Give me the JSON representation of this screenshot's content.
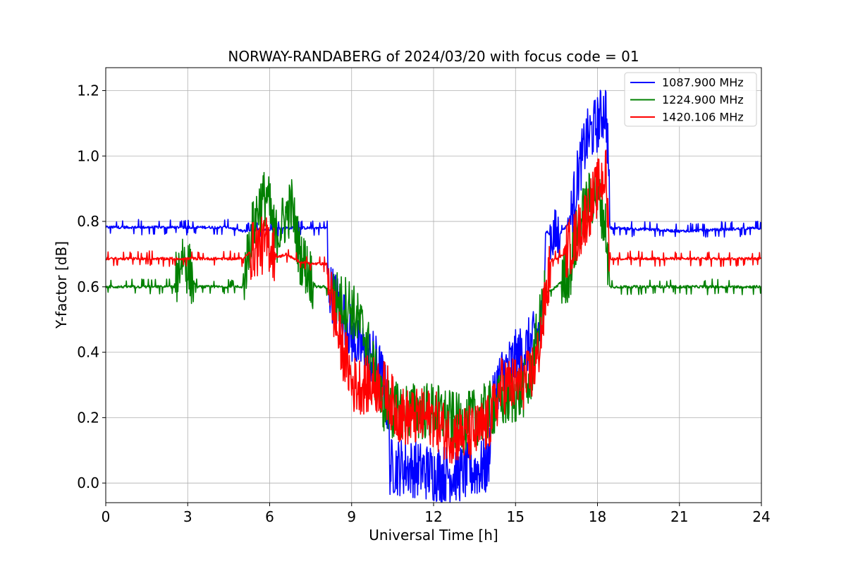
{
  "chart_data": {
    "type": "line",
    "title": "NORWAY-RANDABERG of 2024/03/20 with focus code = 01",
    "xlabel": "Universal Time [h]",
    "ylabel": "Y-factor [dB]",
    "xlim": [
      0,
      24
    ],
    "ylim": [
      -0.06,
      1.27
    ],
    "xticks": [
      0,
      3,
      6,
      9,
      12,
      15,
      18,
      21,
      24
    ],
    "yticks": [
      0.0,
      0.2,
      0.4,
      0.6,
      0.8,
      1.0,
      1.2
    ],
    "xtick_labels": [
      "0",
      "3",
      "6",
      "9",
      "12",
      "15",
      "18",
      "21",
      "24"
    ],
    "ytick_labels": [
      "0.0",
      "0.2",
      "0.4",
      "0.6",
      "0.8",
      "1.0",
      "1.2"
    ],
    "grid": true,
    "legend_position": "top-right",
    "series": [
      {
        "name": "1087.900 MHz",
        "color": "#0000ff",
        "baseline": 0.782,
        "dip": 0.77,
        "x": [
          0.0,
          4.5,
          5.0,
          6.5,
          7.0,
          8.1,
          8.15,
          8.5,
          8.8,
          9.0,
          9.2,
          9.5,
          9.8,
          10.0,
          10.2,
          10.35,
          10.4,
          11.0,
          12.0,
          13.0,
          13.5,
          14.0,
          14.1,
          14.3,
          14.5,
          15.0,
          15.3,
          15.5,
          15.8,
          16.0,
          16.1,
          16.5,
          17.0,
          17.3,
          17.6,
          18.0,
          18.3,
          18.4,
          18.45,
          20.0,
          21.0,
          24.0
        ],
        "y": [
          0.782,
          0.782,
          0.77,
          0.78,
          0.78,
          0.78,
          0.6,
          0.55,
          0.5,
          0.45,
          0.42,
          0.4,
          0.38,
          0.35,
          0.3,
          0.2,
          0.05,
          0.05,
          0.03,
          0.03,
          0.04,
          0.05,
          0.2,
          0.3,
          0.33,
          0.38,
          0.4,
          0.42,
          0.45,
          0.5,
          0.77,
          0.75,
          0.8,
          0.95,
          1.05,
          1.1,
          1.15,
          1.0,
          0.78,
          0.775,
          0.77,
          0.78
        ]
      },
      {
        "name": "1224.900 MHz",
        "color": "#008000",
        "baseline": 0.598,
        "x": [
          0.0,
          2.5,
          2.8,
          3.3,
          5.0,
          5.3,
          5.6,
          5.9,
          6.2,
          6.5,
          6.8,
          7.1,
          7.4,
          7.7,
          8.0,
          8.3,
          8.6,
          8.9,
          9.2,
          9.5,
          9.8,
          10.1,
          10.4,
          10.5,
          11.0,
          12.0,
          13.0,
          14.0,
          14.5,
          15.0,
          15.5,
          15.8,
          16.1,
          16.5,
          17.0,
          17.3,
          17.6,
          18.0,
          18.3,
          18.45,
          20.0,
          22.0,
          24.0
        ],
        "y": [
          0.6,
          0.6,
          0.7,
          0.6,
          0.6,
          0.75,
          0.85,
          0.88,
          0.75,
          0.8,
          0.85,
          0.7,
          0.65,
          0.6,
          0.6,
          0.58,
          0.55,
          0.55,
          0.5,
          0.45,
          0.35,
          0.25,
          0.23,
          0.22,
          0.22,
          0.22,
          0.18,
          0.22,
          0.25,
          0.27,
          0.3,
          0.45,
          0.58,
          0.6,
          0.65,
          0.78,
          0.85,
          0.9,
          0.78,
          0.6,
          0.6,
          0.6,
          0.6
        ]
      },
      {
        "name": "1420.106 MHz",
        "color": "#ff0000",
        "baseline": 0.686,
        "x": [
          0.0,
          5.0,
          5.5,
          6.0,
          6.3,
          6.6,
          7.0,
          7.5,
          8.1,
          8.3,
          8.5,
          8.7,
          8.9,
          9.0,
          9.5,
          10.0,
          10.3,
          10.6,
          11.0,
          11.5,
          12.0,
          12.5,
          13.0,
          13.5,
          14.0,
          14.2,
          14.5,
          15.0,
          15.5,
          15.8,
          16.0,
          16.3,
          16.8,
          17.2,
          17.6,
          18.0,
          18.3,
          18.45,
          20.0,
          22.0,
          24.0
        ],
        "y": [
          0.686,
          0.686,
          0.72,
          0.73,
          0.69,
          0.7,
          0.68,
          0.67,
          0.67,
          0.55,
          0.45,
          0.4,
          0.35,
          0.3,
          0.3,
          0.3,
          0.28,
          0.22,
          0.2,
          0.2,
          0.2,
          0.15,
          0.15,
          0.15,
          0.18,
          0.22,
          0.3,
          0.3,
          0.32,
          0.38,
          0.5,
          0.68,
          0.7,
          0.75,
          0.82,
          0.9,
          0.95,
          0.686,
          0.686,
          0.686,
          0.686
        ]
      }
    ]
  }
}
